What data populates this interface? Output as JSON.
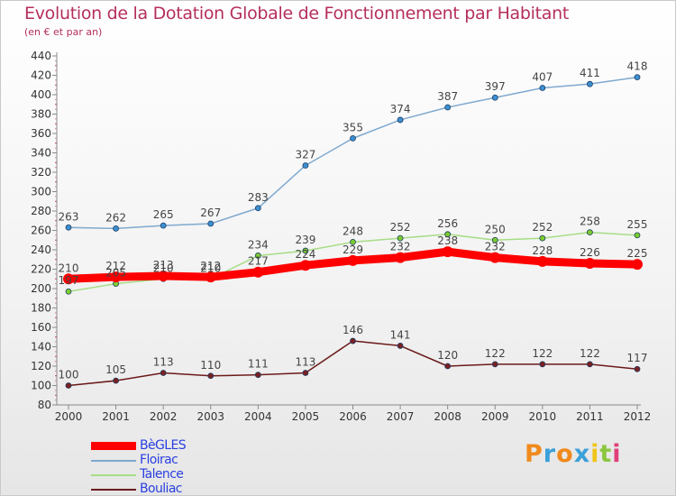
{
  "title": "Evolution de la Dotation Globale de Fonctionnement par Habitant",
  "subtitle": "(en € et par an)",
  "logo": {
    "text": "Proxiti",
    "letters": [
      {
        "ch": "P",
        "color": "#f08a1c"
      },
      {
        "ch": "r",
        "color": "#3aa0d8"
      },
      {
        "ch": "o",
        "color": "#f08a1c"
      },
      {
        "ch": "x",
        "color": "#3aa0d8"
      },
      {
        "ch": "i",
        "color": "#f0c419"
      },
      {
        "ch": "t",
        "color": "#8cc63f"
      },
      {
        "ch": "i",
        "color": "#e0407a"
      }
    ]
  },
  "chart_data": {
    "type": "line",
    "x": [
      "2000",
      "2001",
      "2002",
      "2003",
      "2004",
      "2005",
      "2006",
      "2007",
      "2008",
      "2009",
      "2010",
      "2011",
      "2012"
    ],
    "ylim": [
      80,
      440
    ],
    "yticks": [
      80,
      100,
      120,
      140,
      160,
      180,
      200,
      220,
      240,
      260,
      280,
      300,
      320,
      340,
      360,
      380,
      400,
      420,
      440
    ],
    "grid": false,
    "legend_position": "bottom-left",
    "series": [
      {
        "name": "Bouliac",
        "color": "#6b1a1a",
        "point_color": "#7a2020",
        "emphasis": false,
        "values": [
          100,
          105,
          113,
          110,
          111,
          113,
          146,
          141,
          120,
          122,
          122,
          122,
          117
        ]
      },
      {
        "name": "Talence",
        "color": "#a6dd86",
        "point_color": "#7ccc2f",
        "emphasis": false,
        "values": [
          197,
          205,
          210,
          210,
          234,
          239,
          248,
          252,
          256,
          250,
          252,
          258,
          255
        ]
      },
      {
        "name": "Floirac",
        "color": "#7fa9cf",
        "point_color": "#3c8fd0",
        "emphasis": false,
        "values": [
          263,
          262,
          265,
          267,
          283,
          327,
          355,
          374,
          387,
          397,
          407,
          411,
          418
        ]
      },
      {
        "name": "BèGLES",
        "color": "#ff0000",
        "point_color": "#ff0000",
        "emphasis": true,
        "values": [
          210,
          212,
          213,
          212,
          217,
          224,
          229,
          232,
          238,
          232,
          228,
          226,
          225
        ]
      }
    ],
    "data_labels": {
      "BèGLES": [
        "210",
        "212",
        "213",
        "212",
        "217",
        "224",
        "229",
        "232",
        "238",
        "232",
        "228",
        "226",
        "225"
      ],
      "Floirac": [
        "263",
        "262",
        "265",
        "267",
        "283",
        "327",
        "355",
        "374",
        "387",
        "397",
        "407",
        "411",
        "418"
      ],
      "Talence": [
        "197",
        "205",
        "210",
        "210",
        "234",
        "239",
        "248",
        "252",
        "256",
        "250",
        "252",
        "258",
        "255"
      ],
      "Bouliac": [
        "100",
        "105",
        "113",
        "110",
        "111",
        "113",
        "146",
        "141",
        "120",
        "122",
        "122",
        "122",
        "117"
      ]
    },
    "legend_order": [
      "BèGLES",
      "Floirac",
      "Talence",
      "Bouliac"
    ]
  }
}
